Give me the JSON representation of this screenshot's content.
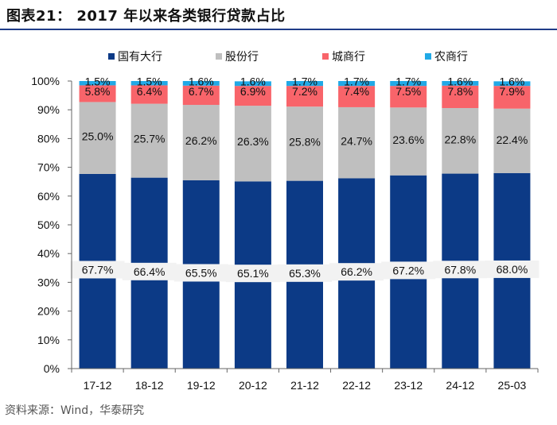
{
  "header": {
    "title": "图表21：  2017 年以来各类银行贷款占比",
    "source": "资料来源：Wind，华泰研究"
  },
  "chart_data": {
    "type": "bar",
    "stacked": true,
    "categories": [
      "17-12",
      "18-12",
      "19-12",
      "20-12",
      "21-12",
      "22-12",
      "23-12",
      "24-12",
      "25-03"
    ],
    "series": [
      {
        "name": "国有大行",
        "color": "#0c3a86",
        "values": [
          67.7,
          66.4,
          65.5,
          65.1,
          65.3,
          66.2,
          67.2,
          67.8,
          68.0
        ],
        "labels": [
          "67.7%",
          "66.4%",
          "65.5%",
          "65.1%",
          "65.3%",
          "66.2%",
          "67.2%",
          "67.8%",
          "68.0%"
        ]
      },
      {
        "name": "股份行",
        "color": "#bfbfbf",
        "values": [
          25.0,
          25.7,
          26.2,
          26.3,
          25.8,
          24.7,
          23.6,
          22.8,
          22.4
        ],
        "labels": [
          "25.0%",
          "25.7%",
          "26.2%",
          "26.3%",
          "25.8%",
          "24.7%",
          "23.6%",
          "22.8%",
          "22.4%"
        ]
      },
      {
        "name": "城商行",
        "color": "#f8646a",
        "values": [
          5.8,
          6.4,
          6.7,
          6.9,
          7.2,
          7.4,
          7.5,
          7.8,
          7.9
        ],
        "labels": [
          "5.8%",
          "6.4%",
          "6.7%",
          "6.9%",
          "7.2%",
          "7.4%",
          "7.5%",
          "7.8%",
          "7.9%"
        ]
      },
      {
        "name": "农商行",
        "color": "#21a9e6",
        "values": [
          1.5,
          1.5,
          1.6,
          1.6,
          1.7,
          1.7,
          1.7,
          1.6,
          1.6
        ],
        "labels": [
          "1.5%",
          "1.5%",
          "1.6%",
          "1.6%",
          "1.7%",
          "1.7%",
          "1.7%",
          "1.6%",
          "1.6%"
        ]
      }
    ],
    "yticks": [
      "0%",
      "10%",
      "20%",
      "30%",
      "40%",
      "50%",
      "60%",
      "70%",
      "80%",
      "90%",
      "100%"
    ],
    "ylim": [
      0,
      100
    ],
    "legend_position": "top",
    "grid": false
  }
}
